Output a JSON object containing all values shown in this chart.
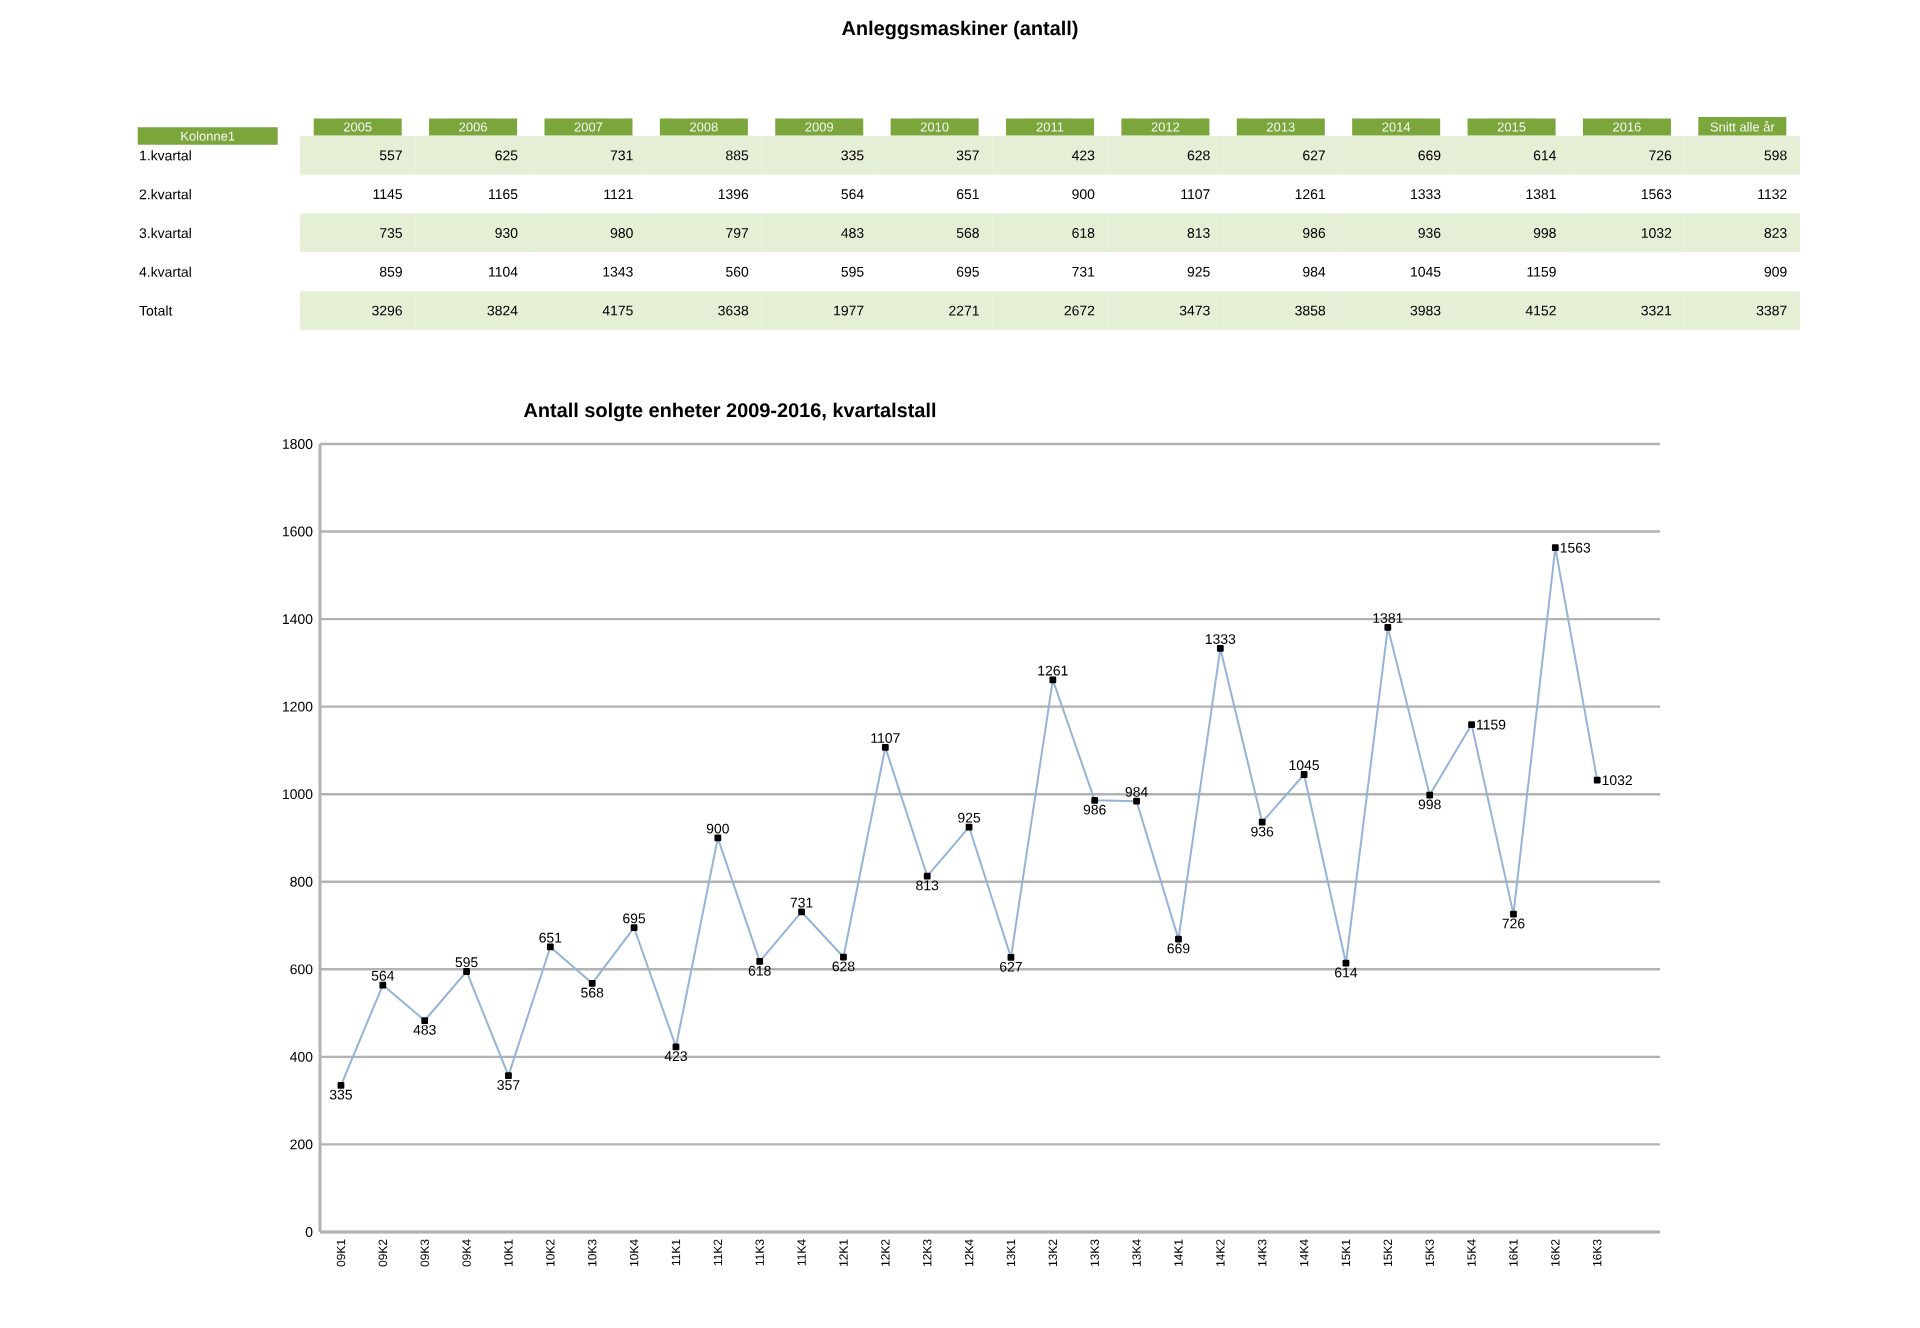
{
  "chart_data": [
    {
      "type": "heatmap",
      "title": "Anleggsmaskiner (antall)",
      "ylabel": "Kolonne1",
      "data_labels": true,
      "categories": [
        "2005",
        "2006",
        "2007",
        "2008",
        "2009",
        "2010",
        "2011",
        "2012",
        "2013",
        "2014",
        "2015",
        "2016",
        "Snitt alle år"
      ],
      "y_categories": [
        "1.kvartal",
        "2.kvartal",
        "3.kvartal",
        "4.kvartal",
        "Totalt"
      ],
      "cells": [
        [
          557,
          625,
          731,
          885,
          335,
          357,
          423,
          628,
          627,
          669,
          614,
          726,
          598
        ],
        [
          1145,
          1165,
          1121,
          1396,
          564,
          651,
          900,
          1107,
          1261,
          1333,
          1381,
          1563,
          1132
        ],
        [
          735,
          930,
          980,
          797,
          483,
          568,
          618,
          813,
          986,
          936,
          998,
          1032,
          823
        ],
        [
          859,
          1104,
          1343,
          560,
          595,
          695,
          731,
          925,
          984,
          1045,
          1159,
          null,
          909
        ],
        [
          3296,
          3824,
          4175,
          3638,
          1977,
          2271,
          2672,
          3473,
          3858,
          3983,
          4152,
          3321,
          3387
        ]
      ]
    },
    {
      "type": "line",
      "title": "Antall solgte enheter 2009-2016, kvartalstall",
      "categories": [
        "09K1",
        "09K2",
        "09K3",
        "09K4",
        "10K1",
        "10K2",
        "10K3",
        "10K4",
        "11K1",
        "11K2",
        "11K3",
        "11K4",
        "12K1",
        "12K2",
        "12K3",
        "12K4",
        "13K1",
        "13K2",
        "13K3",
        "13K4",
        "14K1",
        "14K2",
        "14K3",
        "14K4",
        "15K1",
        "15K2",
        "15K3",
        "15K4",
        "16K1",
        "16K2",
        "16K3"
      ],
      "values": [
        335,
        564,
        483,
        595,
        357,
        651,
        568,
        695,
        423,
        900,
        618,
        731,
        628,
        1107,
        813,
        925,
        627,
        1261,
        986,
        984,
        669,
        1333,
        936,
        1045,
        614,
        1381,
        998,
        1159,
        726,
        1563,
        1032
      ],
      "color": "#95b3d7",
      "marker": "square",
      "data_labels": true,
      "grid": "y",
      "ylim": [
        0,
        1800
      ],
      "yticks": [
        0,
        200,
        400,
        600,
        800,
        1000,
        1200,
        1400,
        1600,
        1800
      ]
    }
  ]
}
